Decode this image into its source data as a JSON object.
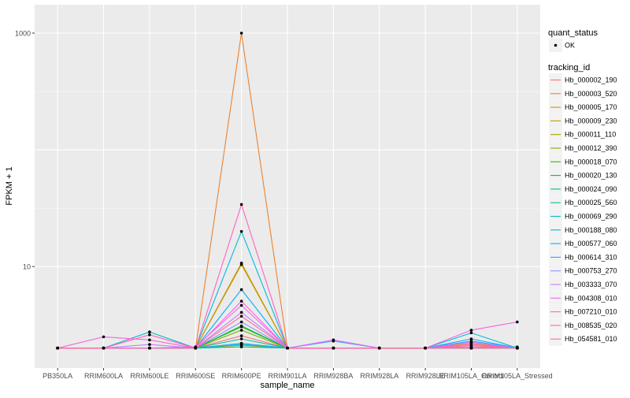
{
  "chart_data": {
    "type": "line",
    "xlabel": "sample_name",
    "ylabel": "FPKM + 1",
    "y_scale": "log10",
    "ylim": [
      1.35,
      1750
    ],
    "y_ticks": [
      10,
      1000
    ],
    "y_tick_labels": [
      "10",
      "1000"
    ],
    "grid": true,
    "legend_position": "right",
    "categories": [
      "PB350LA",
      "RRIM600LA",
      "RRIM600LE",
      "RRIM600SE",
      "RRIM600PE",
      "RRIM901LA",
      "RRIM928BA",
      "RRIM928LA",
      "RRIM928LE",
      "RRIM105LA_Control",
      "RRIM105LA_Stressed"
    ],
    "shape_legend": {
      "title": "quant_status",
      "entries": [
        "OK"
      ]
    },
    "color_legend_title": "tracking_id",
    "series": [
      {
        "name": "Hb_000002_190",
        "color": "#F8766D",
        "values": [
          2,
          2,
          2,
          2,
          2.55,
          2,
          2,
          2,
          2,
          2.1,
          2
        ]
      },
      {
        "name": "Hb_000003_520",
        "color": "#EA8331",
        "values": [
          2,
          2,
          2,
          2,
          1000,
          2,
          2,
          2,
          2,
          2.2,
          2
        ]
      },
      {
        "name": "Hb_000005_170",
        "color": "#D89000",
        "values": [
          2,
          2,
          2,
          2,
          10.7,
          2,
          2,
          2,
          2,
          2,
          2
        ]
      },
      {
        "name": "Hb_000009_230",
        "color": "#C09B00",
        "values": [
          2,
          2,
          2,
          2,
          10.4,
          2,
          2,
          2,
          2,
          2,
          2
        ]
      },
      {
        "name": "Hb_000011_110",
        "color": "#A3A500",
        "values": [
          2,
          2,
          2,
          2,
          2.12,
          2,
          2,
          2,
          2,
          2,
          2
        ]
      },
      {
        "name": "Hb_000012_390",
        "color": "#7CAE00",
        "values": [
          2,
          2,
          2,
          2,
          2.85,
          2,
          2,
          2,
          2,
          2,
          2
        ]
      },
      {
        "name": "Hb_000018_070",
        "color": "#39B600",
        "values": [
          2,
          2,
          2,
          2,
          3.05,
          2,
          2,
          2,
          2,
          2,
          2
        ]
      },
      {
        "name": "Hb_000020_130",
        "color": "#00BB4E",
        "values": [
          2,
          2,
          2,
          2,
          3.1,
          2,
          2,
          2,
          2,
          2,
          2
        ]
      },
      {
        "name": "Hb_000024_090",
        "color": "#00BF7D",
        "values": [
          2,
          2,
          2,
          2,
          2.05,
          2,
          2,
          2,
          2,
          2,
          2
        ]
      },
      {
        "name": "Hb_000025_560",
        "color": "#00C1A3",
        "values": [
          2,
          2,
          2,
          2,
          2.4,
          2,
          2,
          2,
          2,
          2,
          2.05
        ]
      },
      {
        "name": "Hb_000069_290",
        "color": "#00BFC4",
        "values": [
          2,
          2,
          2.75,
          2,
          2.15,
          2,
          2,
          2,
          2,
          2,
          2
        ]
      },
      {
        "name": "Hb_000188_080",
        "color": "#00BAE0",
        "values": [
          2,
          2,
          2,
          2,
          20,
          2,
          2,
          2,
          2,
          2.7,
          2
        ]
      },
      {
        "name": "Hb_000577_060",
        "color": "#00B0F6",
        "values": [
          2,
          2,
          2,
          2,
          6.35,
          2,
          2,
          2,
          2,
          2.4,
          2
        ]
      },
      {
        "name": "Hb_000614_310",
        "color": "#35A2FF",
        "values": [
          2,
          2,
          2,
          2,
          2.2,
          2,
          2.3,
          2,
          2,
          2.3,
          2
        ]
      },
      {
        "name": "Hb_000753_270",
        "color": "#9590FF",
        "values": [
          2,
          2,
          2,
          2,
          3.35,
          2,
          2,
          2,
          2,
          2,
          2
        ]
      },
      {
        "name": "Hb_003333_070",
        "color": "#C77CFF",
        "values": [
          2,
          2,
          2.15,
          2,
          4.05,
          2,
          2,
          2,
          2,
          2.25,
          2
        ]
      },
      {
        "name": "Hb_004308_010",
        "color": "#E76BF3",
        "values": [
          2,
          2,
          2,
          2.05,
          4.65,
          2,
          2.35,
          2,
          2,
          2.05,
          2
        ]
      },
      {
        "name": "Hb_007210_010",
        "color": "#FA62DB",
        "values": [
          2,
          2.5,
          2.35,
          2,
          5.05,
          2,
          2,
          2,
          2,
          2.85,
          3.35
        ]
      },
      {
        "name": "Hb_008535_020",
        "color": "#FF62BC",
        "values": [
          2,
          2,
          2.6,
          2,
          34,
          2,
          2,
          2,
          2,
          2.15,
          2
        ]
      },
      {
        "name": "Hb_054581_010",
        "color": "#FF6C91",
        "values": [
          2,
          2,
          2,
          2,
          3.75,
          2,
          2,
          2,
          2,
          2,
          2
        ]
      }
    ]
  }
}
